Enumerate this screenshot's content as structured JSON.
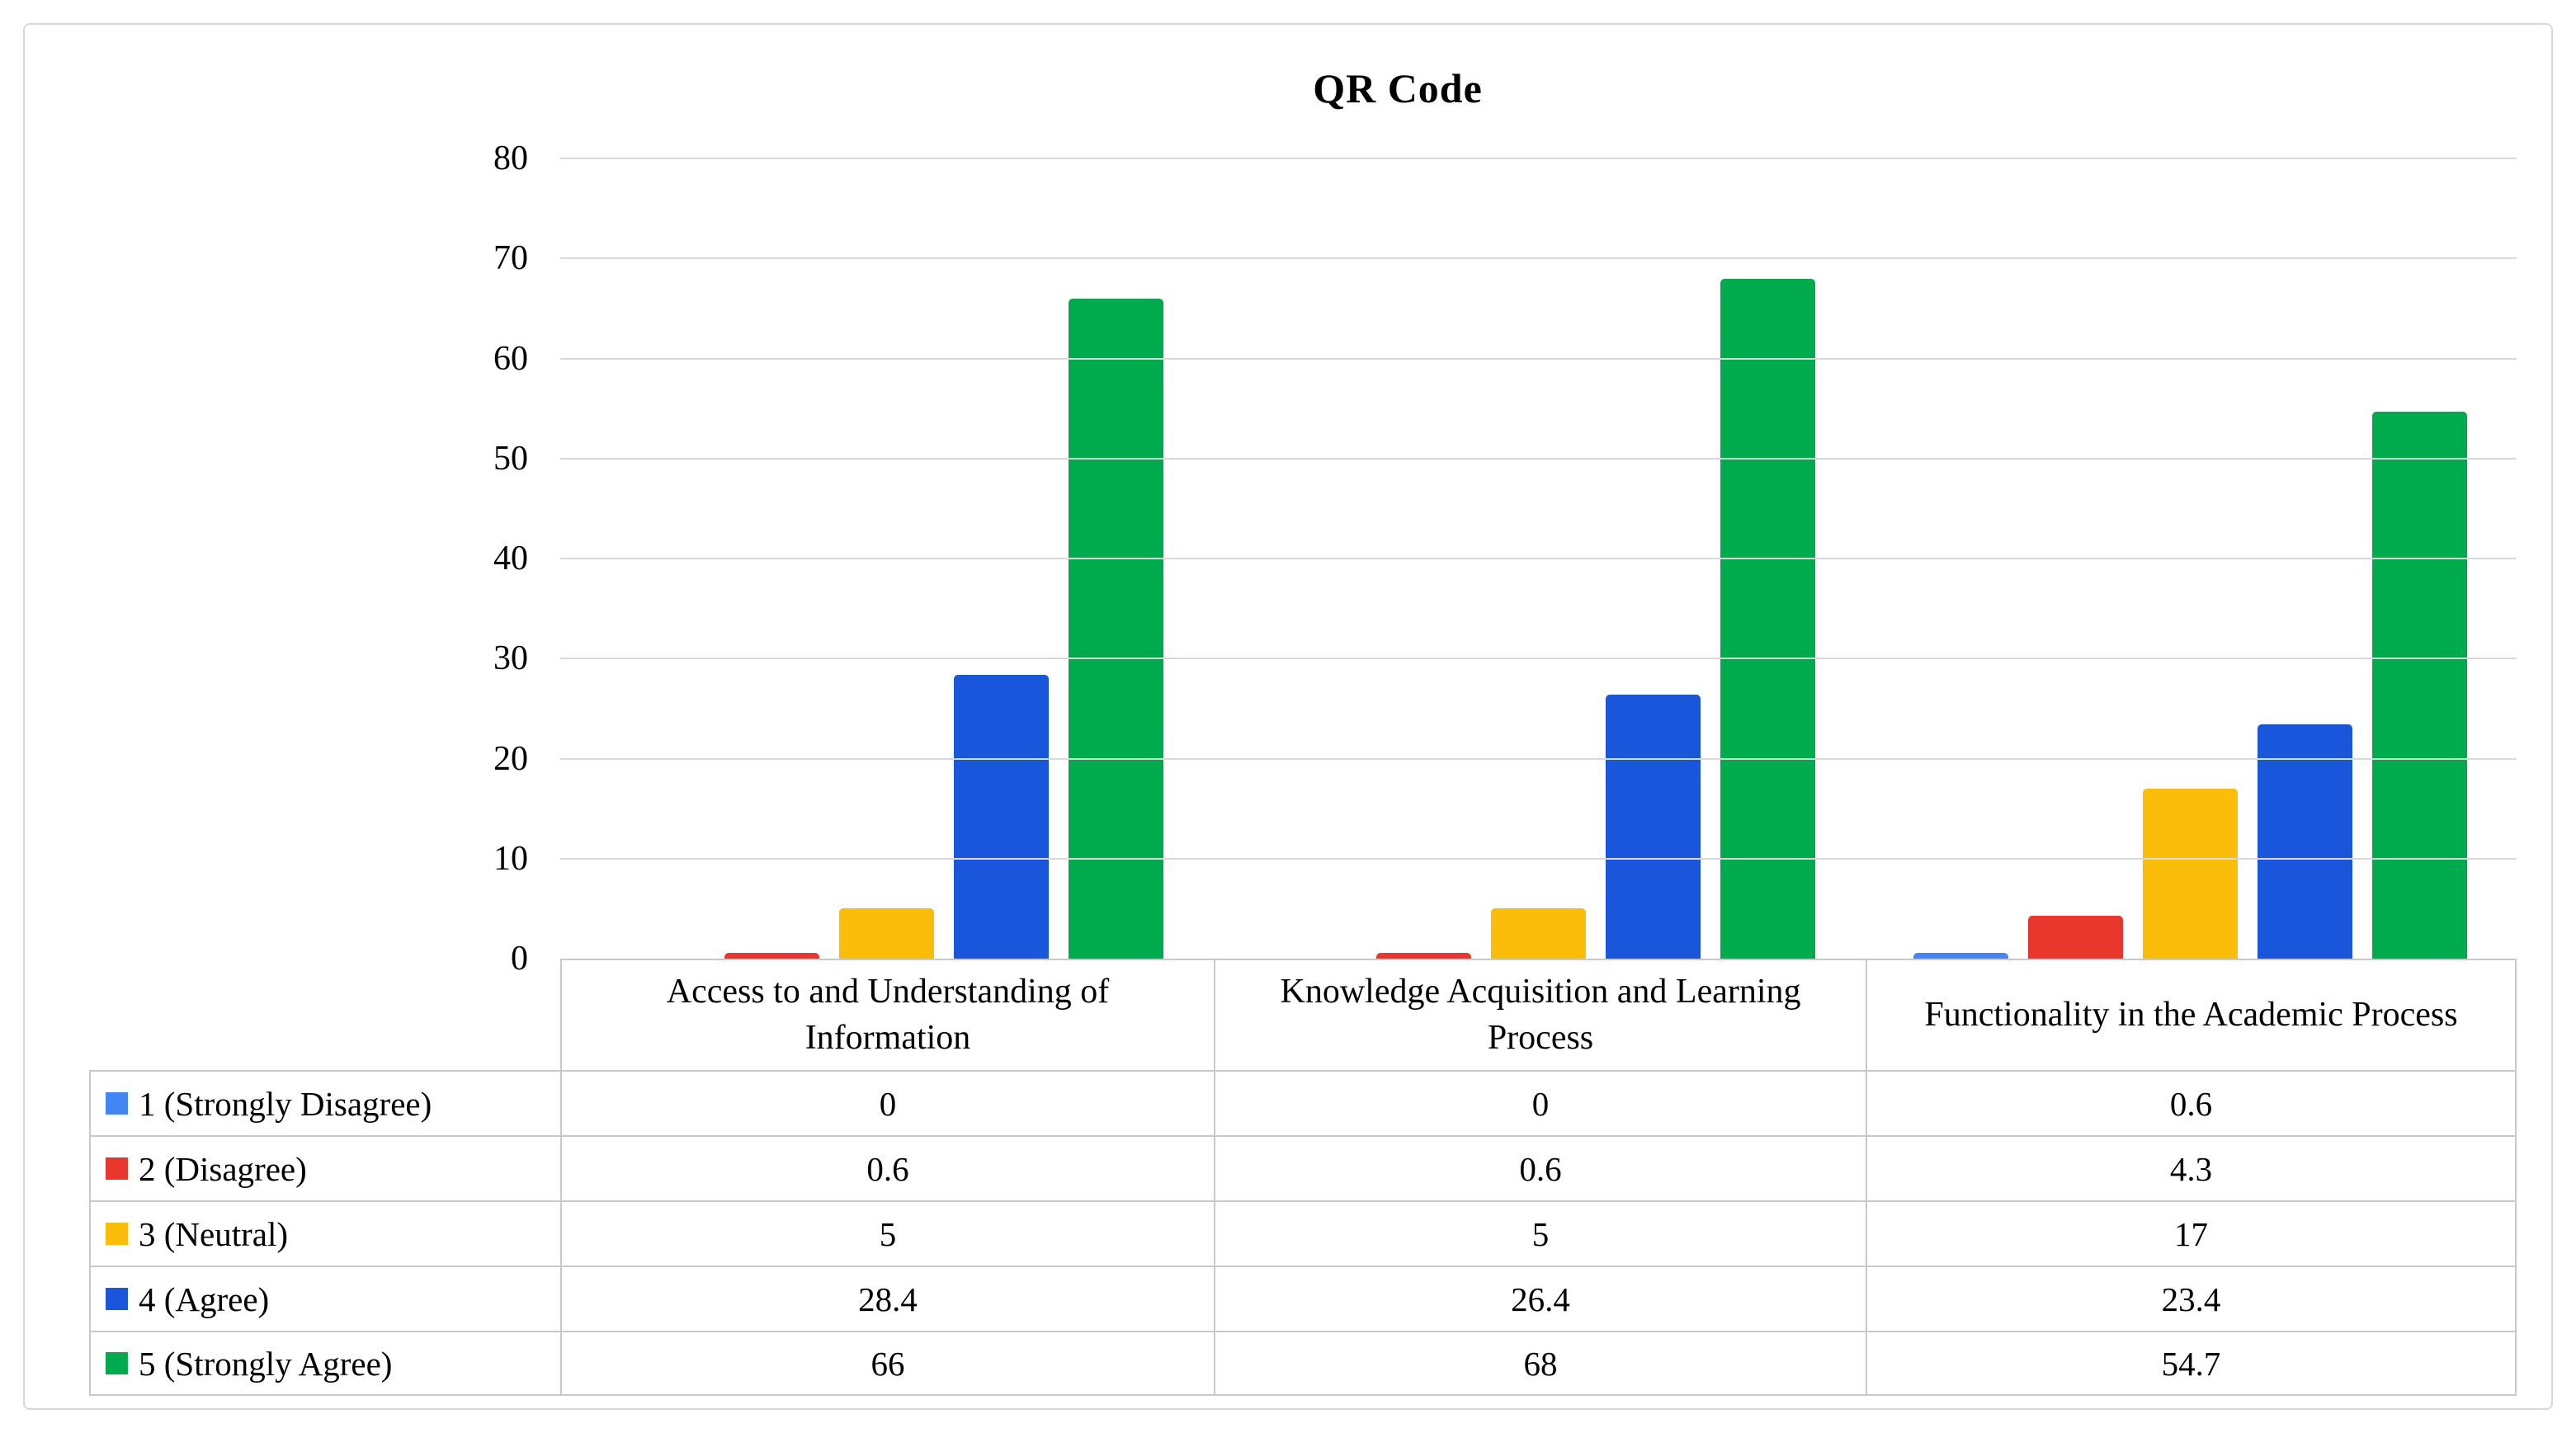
{
  "chart_data": {
    "type": "bar",
    "title": "QR Code",
    "categories": [
      "Access to and Understanding of Information",
      "Knowledge Acquisition and Learning Process",
      "Functionality in the Academic Process"
    ],
    "series": [
      {
        "name": "1 (Strongly Disagree)",
        "color": "#4285F4",
        "values": [
          0,
          0,
          0.6
        ]
      },
      {
        "name": "2 (Disagree)",
        "color": "#E8382D",
        "values": [
          0.6,
          0.6,
          4.3
        ]
      },
      {
        "name": "3 (Neutral)",
        "color": "#FBBD09",
        "values": [
          5,
          5,
          17
        ]
      },
      {
        "name": "4 (Agree)",
        "color": "#1A56DB",
        "values": [
          28.4,
          26.4,
          23.4
        ]
      },
      {
        "name": "5 (Strongly Agree)",
        "color": "#00AB4E",
        "values": [
          66,
          68,
          54.7
        ]
      }
    ],
    "ylim": [
      0,
      80
    ],
    "yticks": [
      0,
      10,
      20,
      30,
      40,
      50,
      60,
      70,
      80
    ],
    "grid": true,
    "legend_position": "data-table-left-column"
  },
  "colors": {
    "gridline": "#D9D9D9",
    "table_border": "#C9C9C9",
    "frame_border": "#D9D9D9",
    "text": "#000000"
  }
}
